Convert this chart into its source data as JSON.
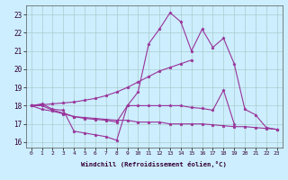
{
  "background_color": "#cceeff",
  "grid_color": "#aacccc",
  "line_color": "#993399",
  "marker": "*",
  "xlim": [
    -0.5,
    23.5
  ],
  "ylim": [
    15.7,
    23.5
  ],
  "yticks": [
    16,
    17,
    18,
    19,
    20,
    21,
    22,
    23
  ],
  "xticks": [
    0,
    1,
    2,
    3,
    4,
    5,
    6,
    7,
    8,
    9,
    10,
    11,
    12,
    13,
    14,
    15,
    16,
    17,
    18,
    19,
    20,
    21,
    22,
    23
  ],
  "xlabel": "Windchill (Refroidissement éolien,°C)",
  "series": [
    [
      18.0,
      18.1,
      17.8,
      17.75,
      16.6,
      16.5,
      16.4,
      16.3,
      16.1,
      18.0,
      18.75,
      21.4,
      22.2,
      23.1,
      22.6,
      21.0,
      22.2,
      21.2,
      21.7,
      20.3,
      17.8,
      17.5,
      16.8,
      16.7
    ],
    [
      18.0,
      18.05,
      18.1,
      18.15,
      18.2,
      18.3,
      18.4,
      18.55,
      18.75,
      19.0,
      19.3,
      19.6,
      19.9,
      20.1,
      20.3,
      20.5,
      null,
      null,
      null,
      null,
      null,
      null,
      null,
      null
    ],
    [
      18.0,
      18.0,
      17.75,
      17.6,
      17.4,
      17.35,
      17.3,
      17.25,
      17.2,
      17.2,
      17.1,
      17.1,
      17.1,
      17.0,
      17.0,
      17.0,
      17.0,
      16.95,
      16.9,
      16.85,
      16.85,
      16.8,
      16.75,
      16.7
    ],
    [
      18.0,
      17.8,
      17.7,
      17.55,
      17.4,
      17.3,
      17.25,
      17.2,
      17.1,
      18.0,
      18.0,
      18.0,
      18.0,
      18.0,
      18.0,
      17.9,
      17.85,
      17.75,
      18.85,
      17.0,
      null,
      null,
      null,
      null
    ]
  ]
}
